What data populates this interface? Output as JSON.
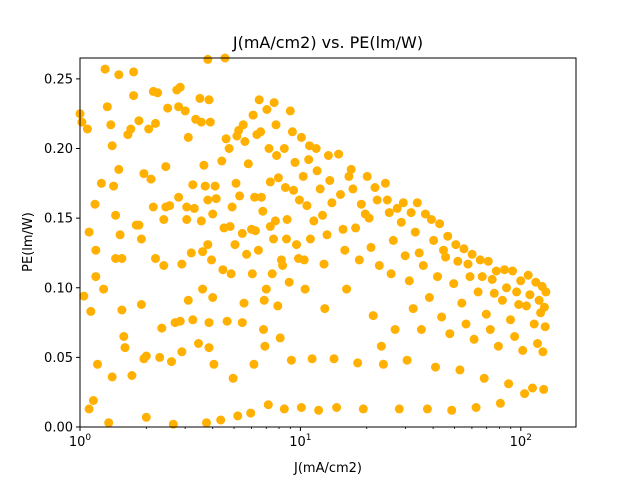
{
  "chart_data": {
    "type": "scatter",
    "title": "J(mA/cm2) vs. PE(lm/W)",
    "xlabel": "J(mA/cm2)",
    "ylabel": "PE(lm/W)",
    "xscale": "log",
    "xlim": [
      1,
      178
    ],
    "ylim": [
      0,
      0.265
    ],
    "xticks": [
      1,
      10,
      100
    ],
    "xtick_labels": [
      "10^0",
      "10^1",
      "10^2"
    ],
    "yticks": [
      0.0,
      0.05,
      0.1,
      0.15,
      0.2,
      0.25
    ],
    "ytick_labels": [
      "0.00",
      "0.05",
      "0.10",
      "0.15",
      "0.20",
      "0.25"
    ],
    "grid": false,
    "marker_color": "#FFB000",
    "series": [
      {
        "values": [
          [
            1.0,
            0.225
          ],
          [
            1.02,
            0.219
          ],
          [
            1.04,
            0.094
          ],
          [
            1.08,
            0.214
          ],
          [
            1.1,
            0.013
          ],
          [
            1.1,
            0.14
          ],
          [
            1.12,
            0.083
          ],
          [
            1.15,
            0.019
          ],
          [
            1.17,
            0.16
          ],
          [
            1.18,
            0.127
          ],
          [
            1.18,
            0.108
          ],
          [
            1.2,
            0.045
          ],
          [
            1.25,
            0.175
          ],
          [
            1.28,
            0.099
          ],
          [
            1.3,
            0.257
          ],
          [
            1.33,
            0.23
          ],
          [
            1.35,
            0.003
          ],
          [
            1.38,
            0.217
          ],
          [
            1.4,
            0.202
          ],
          [
            1.4,
            0.036
          ],
          [
            1.42,
            0.173
          ],
          [
            1.45,
            0.152
          ],
          [
            1.45,
            0.121
          ],
          [
            1.5,
            0.253
          ],
          [
            1.5,
            0.185
          ],
          [
            1.52,
            0.138
          ],
          [
            1.55,
            0.121
          ],
          [
            1.55,
            0.084
          ],
          [
            1.58,
            0.065
          ],
          [
            1.6,
            0.057
          ],
          [
            1.65,
            0.21
          ],
          [
            1.7,
            0.214
          ],
          [
            1.72,
            0.037
          ],
          [
            1.75,
            0.255
          ],
          [
            1.75,
            0.238
          ],
          [
            1.85,
            0.22
          ],
          [
            1.8,
            0.145
          ],
          [
            1.85,
            0.145
          ],
          [
            1.9,
            0.088
          ],
          [
            1.9,
            0.135
          ],
          [
            1.95,
            0.182
          ],
          [
            1.95,
            0.049
          ],
          [
            2.0,
            0.051
          ],
          [
            2.0,
            0.007
          ],
          [
            2.05,
            0.214
          ],
          [
            2.1,
            0.178
          ],
          [
            2.15,
            0.241
          ],
          [
            2.15,
            0.158
          ],
          [
            2.2,
            0.121
          ],
          [
            2.2,
            0.218
          ],
          [
            2.25,
            0.24
          ],
          [
            2.3,
            0.05
          ],
          [
            2.35,
            0.071
          ],
          [
            2.4,
            0.116
          ],
          [
            2.4,
            0.149
          ],
          [
            2.45,
            0.187
          ],
          [
            2.5,
            0.229
          ],
          [
            2.45,
            0.158
          ],
          [
            2.55,
            0.159
          ],
          [
            2.6,
            0.047
          ],
          [
            2.65,
            0.002
          ],
          [
            2.7,
            0.075
          ],
          [
            2.75,
            0.242
          ],
          [
            2.8,
            0.23
          ],
          [
            2.8,
            0.165
          ],
          [
            2.85,
            0.244
          ],
          [
            2.85,
            0.076
          ],
          [
            2.9,
            0.054
          ],
          [
            2.9,
            0.117
          ],
          [
            3.0,
            0.227
          ],
          [
            3.05,
            0.158
          ],
          [
            3.05,
            0.149
          ],
          [
            3.1,
            0.208
          ],
          [
            3.1,
            0.091
          ],
          [
            3.2,
            0.125
          ],
          [
            3.25,
            0.077
          ],
          [
            3.25,
            0.174
          ],
          [
            3.3,
            0.157
          ],
          [
            3.35,
            0.221
          ],
          [
            3.45,
            0.06
          ],
          [
            3.5,
            0.236
          ],
          [
            3.55,
            0.219
          ],
          [
            3.55,
            0.148
          ],
          [
            3.6,
            0.126
          ],
          [
            3.6,
            0.099
          ],
          [
            3.65,
            0.188
          ],
          [
            3.7,
            0.173
          ],
          [
            3.75,
            0.003
          ],
          [
            3.8,
            0.163
          ],
          [
            3.8,
            0.131
          ],
          [
            3.8,
            0.264
          ],
          [
            3.85,
            0.075
          ],
          [
            3.85,
            0.057
          ],
          [
            3.85,
            0.235
          ],
          [
            3.9,
            0.219
          ],
          [
            3.95,
            0.12
          ],
          [
            4.0,
            0.093
          ],
          [
            4.0,
            0.153
          ],
          [
            4.05,
            0.045
          ],
          [
            4.1,
            0.173
          ],
          [
            4.15,
            0.164
          ],
          [
            4.35,
            0.005
          ],
          [
            4.4,
            0.191
          ],
          [
            4.45,
            0.113
          ],
          [
            4.5,
            0.143
          ],
          [
            4.55,
            0.265
          ],
          [
            4.6,
            0.207
          ],
          [
            4.65,
            0.076
          ],
          [
            4.75,
            0.2
          ],
          [
            4.8,
            0.144
          ],
          [
            4.85,
            0.11
          ],
          [
            4.9,
            0.158
          ],
          [
            4.95,
            0.035
          ],
          [
            5.05,
            0.131
          ],
          [
            5.1,
            0.175
          ],
          [
            5.15,
            0.209
          ],
          [
            5.2,
            0.008
          ],
          [
            5.25,
            0.213
          ],
          [
            5.3,
            0.166
          ],
          [
            5.45,
            0.075
          ],
          [
            5.45,
            0.139
          ],
          [
            5.5,
            0.217
          ],
          [
            5.55,
            0.089
          ],
          [
            5.6,
            0.205
          ],
          [
            5.7,
            0.124
          ],
          [
            5.8,
            0.189
          ],
          [
            5.95,
            0.01
          ],
          [
            6.0,
            0.142
          ],
          [
            6.05,
            0.11
          ],
          [
            6.1,
            0.224
          ],
          [
            6.15,
            0.045
          ],
          [
            6.2,
            0.165
          ],
          [
            6.25,
            0.141
          ],
          [
            6.35,
            0.21
          ],
          [
            6.45,
            0.127
          ],
          [
            6.5,
            0.235
          ],
          [
            6.6,
            0.212
          ],
          [
            6.65,
            0.165
          ],
          [
            6.75,
            0.155
          ],
          [
            6.8,
            0.07
          ],
          [
            6.85,
            0.091
          ],
          [
            6.9,
            0.058
          ],
          [
            7.0,
            0.099
          ],
          [
            7.05,
            0.228
          ],
          [
            7.15,
            0.016
          ],
          [
            7.2,
            0.2
          ],
          [
            7.3,
            0.144
          ],
          [
            7.3,
            0.176
          ],
          [
            7.45,
            0.11
          ],
          [
            7.55,
            0.135
          ],
          [
            7.6,
            0.233
          ],
          [
            7.7,
            0.148
          ],
          [
            7.75,
            0.217
          ],
          [
            7.8,
            0.195
          ],
          [
            7.9,
            0.087
          ],
          [
            7.95,
            0.179
          ],
          [
            8.1,
            0.064
          ],
          [
            8.2,
            0.12
          ],
          [
            8.3,
            0.116
          ],
          [
            8.45,
            0.013
          ],
          [
            8.45,
            0.2
          ],
          [
            8.55,
            0.172
          ],
          [
            8.65,
            0.135
          ],
          [
            8.7,
            0.149
          ],
          [
            8.9,
            0.104
          ],
          [
            9.0,
            0.227
          ],
          [
            9.1,
            0.048
          ],
          [
            9.2,
            0.212
          ],
          [
            9.3,
            0.17
          ],
          [
            9.45,
            0.19
          ],
          [
            9.6,
            0.131
          ],
          [
            9.8,
            0.121
          ],
          [
            9.9,
            0.163
          ],
          [
            10.1,
            0.014
          ],
          [
            10.1,
            0.208
          ],
          [
            10.3,
            0.18
          ],
          [
            10.4,
            0.12
          ],
          [
            10.5,
            0.099
          ],
          [
            10.7,
            0.159
          ],
          [
            10.9,
            0.192
          ],
          [
            11.0,
            0.202
          ],
          [
            11.1,
            0.135
          ],
          [
            11.3,
            0.049
          ],
          [
            11.5,
            0.148
          ],
          [
            11.8,
            0.2
          ],
          [
            11.9,
            0.184
          ],
          [
            12.1,
            0.012
          ],
          [
            12.3,
            0.171
          ],
          [
            12.6,
            0.152
          ],
          [
            12.8,
            0.117
          ],
          [
            12.9,
            0.085
          ],
          [
            13.2,
            0.138
          ],
          [
            13.4,
            0.195
          ],
          [
            13.6,
            0.177
          ],
          [
            13.9,
            0.161
          ],
          [
            14.2,
            0.049
          ],
          [
            14.6,
            0.014
          ],
          [
            14.9,
            0.196
          ],
          [
            15.2,
            0.167
          ],
          [
            15.6,
            0.142
          ],
          [
            15.9,
            0.127
          ],
          [
            16.2,
            0.099
          ],
          [
            16.6,
            0.18
          ],
          [
            17.0,
            0.185
          ],
          [
            17.3,
            0.171
          ],
          [
            17.8,
            0.143
          ],
          [
            18.2,
            0.046
          ],
          [
            18.5,
            0.12
          ],
          [
            18.9,
            0.16
          ],
          [
            19.3,
            0.013
          ],
          [
            19.7,
            0.153
          ],
          [
            20.1,
            0.18
          ],
          [
            20.5,
            0.15
          ],
          [
            20.9,
            0.129
          ],
          [
            21.4,
            0.08
          ],
          [
            21.8,
            0.172
          ],
          [
            22.3,
            0.163
          ],
          [
            22.8,
            0.116
          ],
          [
            23.3,
            0.058
          ],
          [
            23.8,
            0.045
          ],
          [
            24.3,
            0.175
          ],
          [
            24.8,
            0.163
          ],
          [
            25.3,
            0.154
          ],
          [
            25.8,
            0.11
          ],
          [
            26.4,
            0.134
          ],
          [
            26.9,
            0.07
          ],
          [
            27.5,
            0.157
          ],
          [
            28.1,
            0.013
          ],
          [
            28.7,
            0.147
          ],
          [
            29.3,
            0.161
          ],
          [
            29.9,
            0.123
          ],
          [
            30.5,
            0.048
          ],
          [
            31.2,
            0.105
          ],
          [
            31.8,
            0.154
          ],
          [
            32.5,
            0.085
          ],
          [
            33.2,
            0.14
          ],
          [
            33.9,
            0.161
          ],
          [
            34.6,
            0.125
          ],
          [
            35.4,
            0.07
          ],
          [
            36.1,
            0.116
          ],
          [
            36.9,
            0.153
          ],
          [
            37.7,
            0.013
          ],
          [
            38.5,
            0.093
          ],
          [
            39.3,
            0.149
          ],
          [
            40.2,
            0.134
          ],
          [
            41.0,
            0.043
          ],
          [
            41.9,
            0.108
          ],
          [
            42.8,
            0.146
          ],
          [
            43.7,
            0.079
          ],
          [
            44.6,
            0.127
          ],
          [
            45.6,
            0.122
          ],
          [
            46.6,
            0.137
          ],
          [
            47.6,
            0.067
          ],
          [
            48.6,
            0.012
          ],
          [
            49.6,
            0.103
          ],
          [
            50.7,
            0.131
          ],
          [
            51.8,
            0.119
          ],
          [
            52.9,
            0.041
          ],
          [
            54.0,
            0.089
          ],
          [
            55.2,
            0.128
          ],
          [
            56.4,
            0.074
          ],
          [
            57.6,
            0.117
          ],
          [
            58.8,
            0.108
          ],
          [
            60.1,
            0.124
          ],
          [
            61.4,
            0.063
          ],
          [
            62.7,
            0.014
          ],
          [
            64.0,
            0.097
          ],
          [
            65.4,
            0.12
          ],
          [
            66.8,
            0.108
          ],
          [
            68.2,
            0.035
          ],
          [
            69.7,
            0.081
          ],
          [
            71.2,
            0.119
          ],
          [
            72.7,
            0.07
          ],
          [
            74.2,
            0.106
          ],
          [
            75.8,
            0.096
          ],
          [
            77.4,
            0.112
          ],
          [
            79.1,
            0.058
          ],
          [
            80.8,
            0.017
          ],
          [
            82.5,
            0.091
          ],
          [
            84.3,
            0.113
          ],
          [
            86.1,
            0.1
          ],
          [
            88.0,
            0.031
          ],
          [
            89.8,
            0.077
          ],
          [
            91.8,
            0.112
          ],
          [
            93.7,
            0.065
          ],
          [
            95.7,
            0.097
          ],
          [
            97.8,
            0.088
          ],
          [
            99.9,
            0.105
          ],
          [
            102.0,
            0.055
          ],
          [
            104.0,
            0.024
          ],
          [
            106.0,
            0.087
          ],
          [
            108.0,
            0.109
          ],
          [
            110.0,
            0.095
          ],
          [
            113.0,
            0.028
          ],
          [
            115.0,
            0.074
          ],
          [
            117.0,
            0.104
          ],
          [
            119.0,
            0.06
          ],
          [
            121.0,
            0.091
          ],
          [
            123.0,
            0.082
          ],
          [
            125.0,
            0.101
          ],
          [
            126.0,
            0.054
          ],
          [
            127.0,
            0.027
          ],
          [
            128.0,
            0.086
          ],
          [
            129.0,
            0.072
          ],
          [
            130.0,
            0.097
          ]
        ]
      }
    ]
  }
}
